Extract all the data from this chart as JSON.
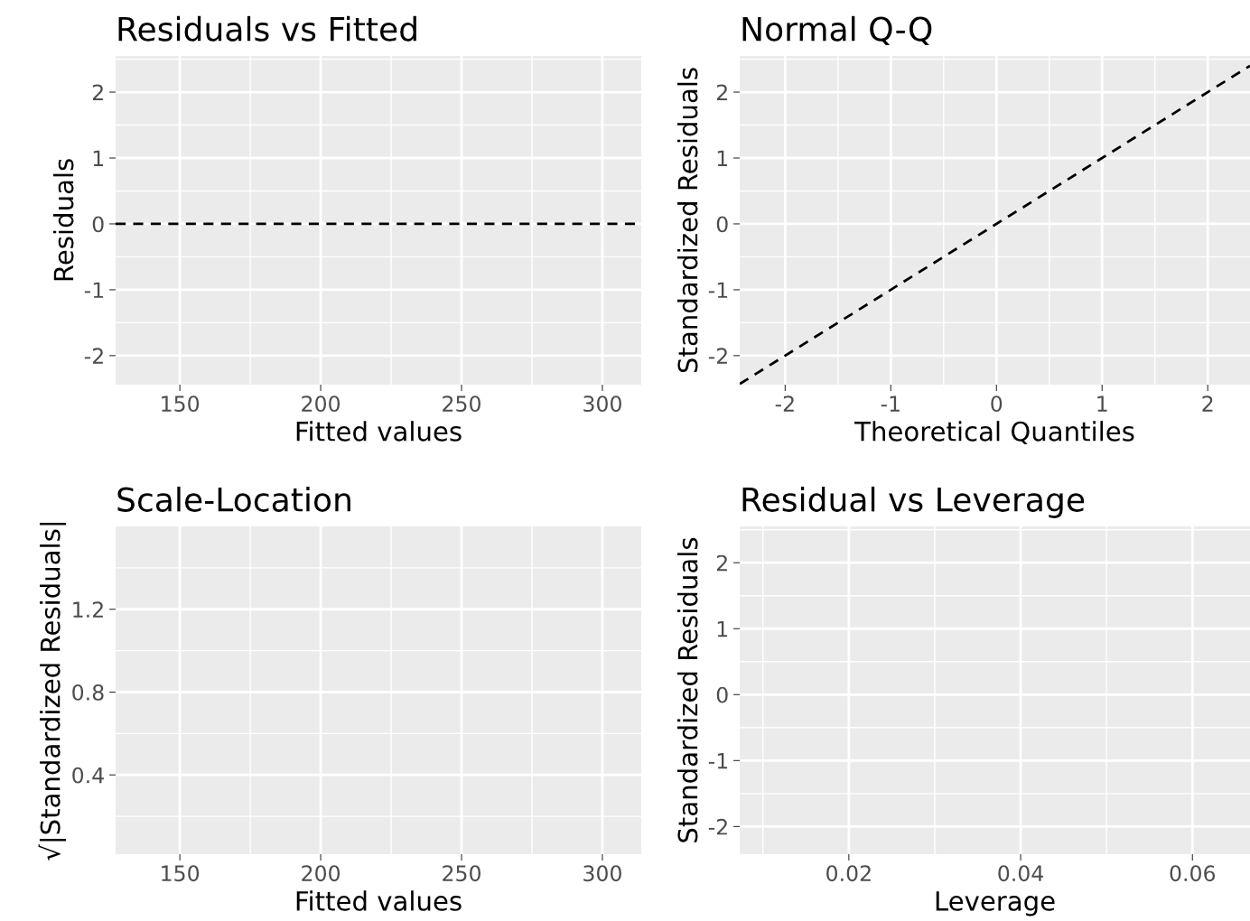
{
  "chart_data": [
    {
      "type": "line",
      "title": "Residuals vs Fitted",
      "xlabel": "Fitted values",
      "ylabel": "Residuals",
      "xlim": [
        127.2,
        313.8
      ],
      "xticks": [
        150,
        200,
        250,
        300
      ],
      "ylim": [
        -2.44,
        2.55
      ],
      "yticks": [
        -2,
        -1,
        0,
        1,
        2
      ],
      "grid": true,
      "ref_lines": [
        {
          "axis": "y",
          "value": 0,
          "color": "#000000",
          "line_style": "dashed"
        }
      ]
    },
    {
      "type": "line",
      "title": "Normal Q-Q",
      "xlabel": "Theoretical Quantiles",
      "ylabel": "Standardized Residuals",
      "series": [
        {
          "color": "#000000",
          "line_style": "dashed",
          "x": [
            -2.43,
            2.4
          ],
          "values": [
            -2.43,
            2.4
          ]
        }
      ],
      "xlim": [
        -2.43,
        2.4
      ],
      "xticks": [
        -2,
        -1,
        0,
        1,
        2
      ],
      "ylim": [
        -2.44,
        2.55
      ],
      "yticks": [
        -2,
        -1,
        0,
        1,
        2
      ],
      "grid": true
    },
    {
      "type": "line",
      "title": "Scale-Location",
      "xlabel": "Fitted values",
      "ylabel": "√|Standardized Residuals|",
      "xlim": [
        127.2,
        313.8
      ],
      "xticks": [
        150,
        200,
        250,
        300
      ],
      "ylim": [
        0.017,
        1.6
      ],
      "yticks": [
        0.4,
        0.8,
        1.2
      ],
      "grid": true
    },
    {
      "type": "line",
      "title": "Residual vs Leverage",
      "xlabel": "Leverage",
      "ylabel": "Standardized Residuals",
      "xlim": [
        0.0073,
        0.0667
      ],
      "xticks": [
        0.02,
        0.04,
        0.06
      ],
      "ylim": [
        -2.42,
        2.55
      ],
      "yticks": [
        -2,
        -1,
        0,
        1,
        2
      ],
      "grid": true
    }
  ]
}
